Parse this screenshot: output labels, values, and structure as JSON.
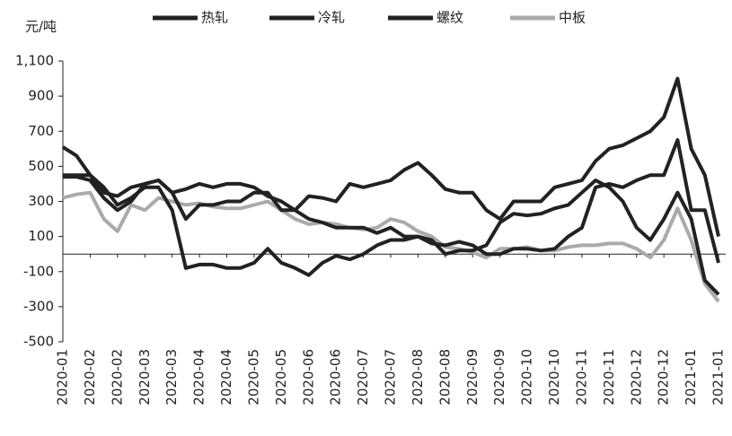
{
  "chart_data": {
    "type": "line",
    "ylabel": "元/吨",
    "categories": [
      "2020-01",
      null,
      "2020-02",
      null,
      "2020-02",
      null,
      "2020-03",
      null,
      "2020-03",
      null,
      "2020-04",
      null,
      "2020-04",
      null,
      "2020-05",
      null,
      "2020-05",
      null,
      "2020-06",
      null,
      "2020-06",
      null,
      "2020-07",
      null,
      "2020-07",
      null,
      "2020-08",
      null,
      "2020-08",
      null,
      "2020-09",
      null,
      "2020-09",
      null,
      "2020-10",
      null,
      "2020-10",
      null,
      "2020-11",
      null,
      "2020-11",
      null,
      "2020-12",
      null,
      "2020-12",
      null,
      "2021-01",
      null,
      "2021-01"
    ],
    "series": [
      {
        "name": "热轧",
        "color": "#222222",
        "values": [
          610,
          560,
          450,
          350,
          330,
          380,
          400,
          420,
          350,
          370,
          400,
          380,
          400,
          400,
          380,
          330,
          300,
          250,
          330,
          320,
          300,
          400,
          380,
          400,
          420,
          480,
          520,
          450,
          370,
          350,
          350,
          250,
          200,
          300,
          300,
          300,
          380,
          400,
          420,
          530,
          600,
          620,
          660,
          700,
          780,
          1000,
          600,
          450,
          100
        ]
      },
      {
        "name": "冷轧",
        "color": "#222222",
        "values": [
          450,
          450,
          450,
          380,
          280,
          320,
          380,
          380,
          250,
          -80,
          -60,
          -60,
          -80,
          -80,
          -50,
          30,
          -50,
          -80,
          -120,
          -50,
          -10,
          -30,
          0,
          50,
          80,
          80,
          100,
          60,
          50,
          70,
          50,
          0,
          0,
          30,
          30,
          20,
          30,
          100,
          150,
          380,
          400,
          380,
          420,
          450,
          450,
          650,
          250,
          250,
          -50
        ]
      },
      {
        "name": "螺纹",
        "color": "#222222",
        "values": [
          440,
          440,
          420,
          320,
          250,
          300,
          400,
          420,
          350,
          200,
          280,
          280,
          300,
          300,
          350,
          350,
          250,
          250,
          200,
          180,
          150,
          150,
          150,
          120,
          150,
          100,
          100,
          80,
          0,
          20,
          20,
          50,
          180,
          230,
          220,
          230,
          260,
          280,
          350,
          420,
          380,
          300,
          150,
          80,
          200,
          350,
          200,
          -150,
          -230
        ]
      },
      {
        "name": "中板",
        "color": "#aaaaaa",
        "values": [
          320,
          340,
          350,
          200,
          130,
          280,
          250,
          320,
          300,
          280,
          290,
          270,
          260,
          260,
          280,
          300,
          250,
          200,
          170,
          180,
          170,
          150,
          140,
          150,
          200,
          180,
          130,
          100,
          40,
          30,
          10,
          -20,
          30,
          30,
          40,
          20,
          20,
          40,
          50,
          50,
          60,
          60,
          30,
          -20,
          80,
          260,
          80,
          -170,
          -270
        ]
      }
    ],
    "ylim": [
      -500,
      1100
    ],
    "yticks": [
      -500,
      -300,
      -100,
      100,
      300,
      500,
      700,
      900,
      {
        "value": 1100,
        "label": "1,100"
      }
    ],
    "legend": "top"
  }
}
